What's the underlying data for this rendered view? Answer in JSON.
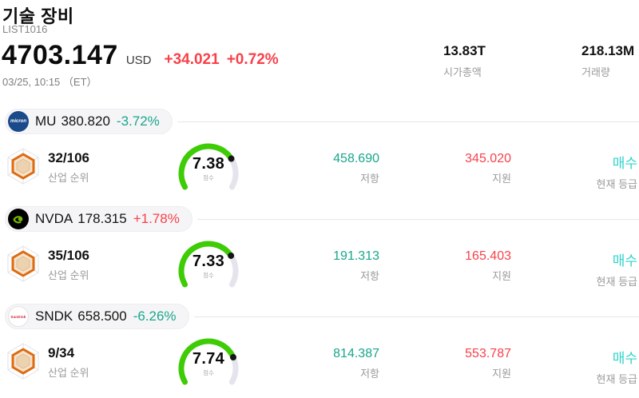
{
  "header": {
    "title": "기술 장비",
    "subtitle": "LIST1016",
    "price": "4703.147",
    "currency": "USD",
    "change_abs": "+34.021",
    "change_pct": "+0.72%",
    "datetime": "03/25, 10:15 （ET）",
    "stats": {
      "market_cap": {
        "value": "13.83T",
        "label": "시가총액"
      },
      "volume": {
        "value": "218.13M",
        "label": "거래량"
      }
    }
  },
  "labels": {
    "industry_rank": "산업 순위",
    "score": "점수",
    "resistance": "저항",
    "support": "지원",
    "rating": "현재 등급"
  },
  "icons": {
    "rank_badge": "hexagon-radar-icon",
    "gauge": "semicircle-gauge"
  },
  "colors": {
    "up_red": "#f8414a",
    "down_teal": "#1ba68d",
    "resistance_teal": "#17a78c",
    "support_red": "#f8414a",
    "rating_cyan": "#30d5c8",
    "gauge_green": "#3ecc05",
    "gauge_track": "#e4e4ec",
    "gauge_dot": "#151515"
  },
  "gauge_scale_max": 10,
  "stocks": [
    {
      "ticker": "MU",
      "price": "380.820",
      "change": "-3.72%",
      "change_direction": "down",
      "logo": "micron",
      "logo_text": "micron",
      "rank": "32/106",
      "score": 7.38,
      "resistance": "458.690",
      "support": "345.020",
      "rating": "매수"
    },
    {
      "ticker": "NVDA",
      "price": "178.315",
      "change": "+1.78%",
      "change_direction": "up",
      "logo": "nvda",
      "logo_text": "",
      "rank": "35/106",
      "score": 7.33,
      "resistance": "191.313",
      "support": "165.403",
      "rating": "매수"
    },
    {
      "ticker": "SNDK",
      "price": "658.500",
      "change": "-6.26%",
      "change_direction": "down",
      "logo": "sandisk",
      "logo_text": "SanDisk",
      "rank": "9/34",
      "score": 7.74,
      "resistance": "814.387",
      "support": "553.787",
      "rating": "매수"
    }
  ]
}
